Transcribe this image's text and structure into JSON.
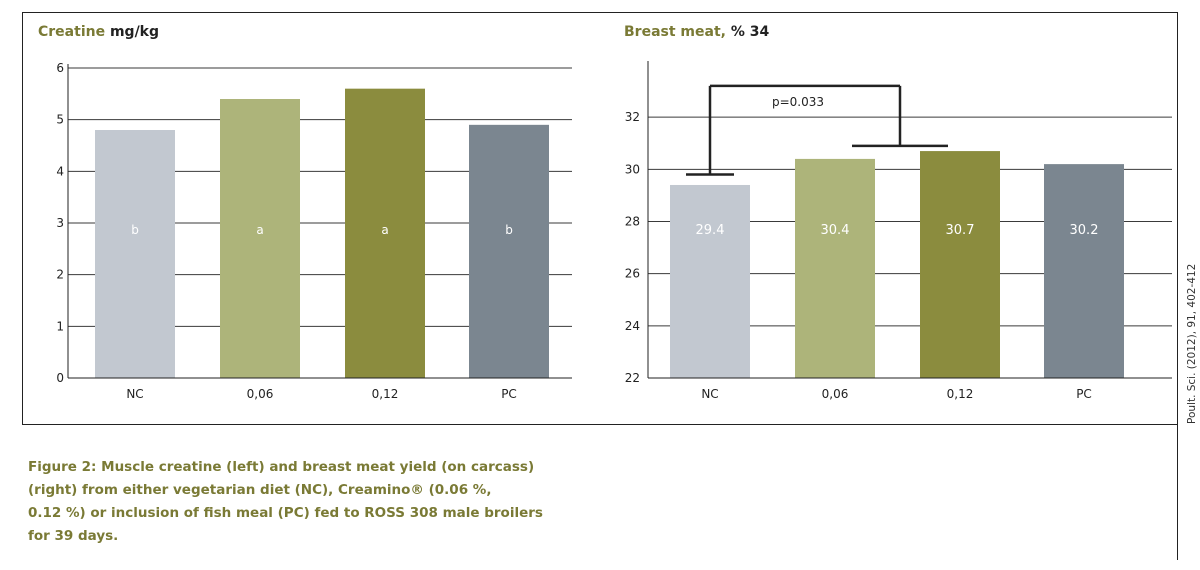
{
  "colors": {
    "nc": "#c2c8d0",
    "c006": "#adb47a",
    "c012": "#8b8c3e",
    "pc": "#7b8690",
    "title_accent": "#7a7a35",
    "caption": "#7a7a35"
  },
  "chart_data": [
    {
      "type": "bar",
      "title_lead": "Creatine",
      "title_tail": "mg/kg",
      "categories": [
        "NC",
        "0,06",
        "0,12",
        "PC"
      ],
      "values": [
        4.8,
        5.4,
        5.6,
        4.9
      ],
      "bar_labels": [
        "b",
        "a",
        "a",
        "b"
      ],
      "ylim": [
        0,
        6
      ],
      "yticks": [
        "0",
        "1",
        "2",
        "3",
        "4",
        "5",
        "6"
      ],
      "grid": true
    },
    {
      "type": "bar",
      "title_lead": "Breast meat,",
      "title_tail": "% 34",
      "categories": [
        "NC",
        "0,06",
        "0,12",
        "PC"
      ],
      "values": [
        29.4,
        30.4,
        30.7,
        30.2
      ],
      "bar_labels": [
        "29.4",
        "30.4",
        "30.7",
        "30.2"
      ],
      "ylim": [
        22,
        34
      ],
      "yticks": [
        "22",
        "24",
        "26",
        "28",
        "30",
        "32"
      ],
      "grid": true,
      "annotation": "p=0.033"
    }
  ],
  "caption": {
    "lines": [
      "Figure 2: Muscle creatine (left) and breast meat yield (on carcass)",
      "(right) from either vegetarian diet (NC), Creamino® (0.06 %,",
      "0.12 %) or inclusion of fish meal (PC) fed to ROSS 308 male broilers",
      "for 39 days."
    ]
  },
  "side_citation": "Poult. Sci. (2012), 91, 402-412"
}
